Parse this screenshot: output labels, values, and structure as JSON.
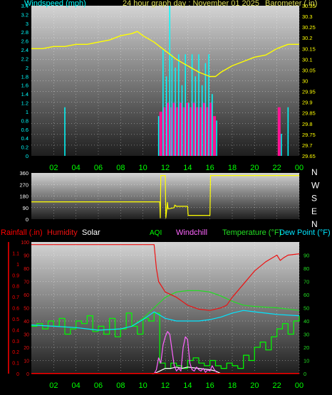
{
  "colors": {
    "background": "#000000",
    "panel_top": "#d4d4d4",
    "panel_bottom": "#1e1e1e",
    "grid": "#ffffff",
    "wind": "#00ffff",
    "gust": "#ff1493",
    "barometer": "#ffff00",
    "direction": "#ffff00",
    "rain": "#ff0000",
    "humidity": "#ee1111",
    "solar": "#ffffff",
    "aqi": "#00ff00",
    "windchill": "#ff66ff",
    "temperature": "#22dd22",
    "dewpoint": "#00e5ff",
    "time_labels": "#00ff00",
    "left_axis_wind": "#00ffff",
    "left_axis_rain": "#ff0000",
    "right_axis": "#22dd22",
    "wind_dir_letters": "#ffffff"
  },
  "chart_data": [
    {
      "type": "line",
      "title": "24 hour graph day : November 01 2025",
      "left_label": "Windspeed (mph)",
      "right_label": "Barometer (.in)",
      "xlim": [
        0,
        24
      ],
      "x_ticks": [
        "02",
        "04",
        "06",
        "08",
        "10",
        "12",
        "14",
        "16",
        "18",
        "20",
        "22",
        "00"
      ],
      "left_ylim": [
        0,
        3.4
      ],
      "left_ticks": [
        "0",
        "0.2",
        "0.4",
        "0.6",
        "0.8",
        "1",
        "1.2",
        "1.4",
        "1.6",
        "1.8",
        "2",
        "2.2",
        "2.4",
        "2.6",
        "2.8",
        "3",
        "3.2",
        "3.4"
      ],
      "right_ylim": [
        29.65,
        30.35
      ],
      "right_ticks": [
        "29.65",
        "29.7",
        "29.75",
        "29.8",
        "29.85",
        "29.9",
        "29.95",
        "30",
        "30.05",
        "30.1",
        "30.15",
        "30.2",
        "30.25",
        "30.3",
        "30.35"
      ],
      "series": [
        {
          "name": "Barometer (.in)",
          "x": [
            0,
            1,
            2,
            3,
            4,
            5,
            6,
            7,
            8,
            9,
            9.5,
            10,
            11,
            11.5,
            12,
            12.5,
            13,
            14,
            15,
            16,
            16.5,
            17,
            18,
            19,
            20,
            21,
            22,
            22.5,
            23,
            24
          ],
          "y": [
            30.15,
            30.15,
            30.16,
            30.16,
            30.17,
            30.17,
            30.18,
            30.19,
            30.21,
            30.22,
            30.23,
            30.21,
            30.18,
            30.16,
            30.14,
            30.12,
            30.1,
            30.07,
            30.04,
            30.02,
            30.02,
            30.04,
            30.07,
            30.09,
            30.11,
            30.12,
            30.15,
            30.16,
            30.17,
            30.17
          ]
        },
        {
          "name": "Windspeed (mph)",
          "spikes": [
            [
              3.0,
              1.1
            ],
            [
              11.4,
              0.9
            ],
            [
              11.8,
              2.4
            ],
            [
              12.1,
              1.8
            ],
            [
              12.4,
              3.4
            ],
            [
              12.6,
              2.3
            ],
            [
              12.9,
              2.0
            ],
            [
              13.2,
              2.3
            ],
            [
              13.5,
              1.6
            ],
            [
              13.8,
              2.3
            ],
            [
              14.1,
              1.2
            ],
            [
              14.4,
              2.3
            ],
            [
              14.7,
              1.8
            ],
            [
              15.0,
              2.3
            ],
            [
              15.3,
              1.6
            ],
            [
              15.6,
              2.1
            ],
            [
              15.9,
              2.3
            ],
            [
              16.2,
              1.4
            ],
            [
              16.6,
              0.8
            ],
            [
              22.4,
              0.5
            ],
            [
              23.0,
              1.1
            ]
          ]
        },
        {
          "name": "Gust",
          "spikes": [
            [
              11.6,
              1.0
            ],
            [
              11.9,
              1.1
            ],
            [
              12.2,
              1.2
            ],
            [
              12.5,
              1.1
            ],
            [
              12.8,
              1.2
            ],
            [
              13.1,
              1.1
            ],
            [
              13.4,
              1.2
            ],
            [
              13.7,
              1.1
            ],
            [
              14.0,
              1.2
            ],
            [
              14.3,
              1.1
            ],
            [
              14.6,
              1.2
            ],
            [
              14.9,
              1.1
            ],
            [
              15.2,
              1.1
            ],
            [
              15.5,
              1.2
            ],
            [
              15.8,
              1.1
            ],
            [
              16.1,
              1.2
            ],
            [
              16.4,
              0.9
            ],
            [
              22.2,
              1.1
            ]
          ]
        }
      ]
    },
    {
      "type": "line",
      "right_label_letters": [
        "N",
        "W",
        "S",
        "E",
        "N"
      ],
      "left_ticks": [
        "360",
        "270",
        "180",
        "90",
        "0"
      ],
      "ylim": [
        0,
        360
      ],
      "xlim": [
        0,
        24
      ],
      "series": [
        {
          "name": "Wind direction",
          "x": [
            0,
            11.5,
            11.55,
            11.6,
            12.0,
            12.05,
            12.2,
            12.25,
            12.8,
            12.85,
            13.0,
            13.2,
            14.0,
            14.05,
            16.0,
            16.05,
            24
          ],
          "y": [
            135,
            135,
            10,
            340,
            340,
            10,
            130,
            80,
            90,
            110,
            100,
            100,
            100,
            30,
            30,
            340,
            340
          ]
        }
      ]
    },
    {
      "type": "line",
      "legend": [
        "Rainfall (.in)",
        "Humidity",
        "Solar",
        "AQI",
        "Windchill",
        "Temperature (°F)",
        "Dew Point (°F)"
      ],
      "xlim": [
        0,
        24
      ],
      "x_ticks": [
        "02",
        "04",
        "06",
        "08",
        "10",
        "12",
        "14",
        "16",
        "18",
        "20",
        "22",
        "00"
      ],
      "rain_ylim": [
        0,
        1.2
      ],
      "rain_ticks": [
        "0",
        "0.1",
        "0.2",
        "0.3",
        "0.4",
        "0.5",
        "0.6",
        "0.7",
        "0.8",
        "0.9",
        "1",
        "1.1"
      ],
      "humidity_ticks": [
        "0",
        "10",
        "20",
        "30",
        "40",
        "50",
        "60",
        "70",
        "80",
        "90",
        "100"
      ],
      "temp_ylim": [
        0,
        100
      ],
      "temp_ticks": [
        "0",
        "10",
        "20",
        "30",
        "40",
        "50",
        "60",
        "70",
        "80",
        "90"
      ],
      "series": [
        {
          "name": "Humidity",
          "x": [
            0,
            1,
            2,
            3,
            4,
            5,
            6,
            7,
            8,
            9,
            10,
            11,
            11.2,
            11.4,
            12,
            13,
            14,
            15,
            16,
            17,
            17.5,
            18,
            19,
            20,
            21,
            22,
            22.3,
            22.6,
            23,
            24
          ],
          "y": [
            98,
            98,
            98,
            98,
            98,
            98,
            98,
            98,
            98,
            98,
            98,
            98,
            80,
            70,
            62,
            58,
            52,
            49,
            48,
            50,
            52,
            58,
            68,
            78,
            85,
            90,
            86,
            88,
            90,
            91
          ]
        },
        {
          "name": "Temperature (°F)",
          "x": [
            0,
            2,
            4,
            6,
            8,
            9,
            10,
            11,
            12,
            13,
            14,
            15,
            16,
            17,
            18,
            19,
            20,
            22,
            24
          ],
          "y": [
            37,
            36,
            35,
            33,
            34,
            36,
            42,
            50,
            58,
            62,
            63,
            63,
            62,
            59,
            55,
            52,
            51,
            50,
            48
          ]
        },
        {
          "name": "Dew Point (°F)",
          "x": [
            0,
            2,
            4,
            6,
            8,
            9,
            10,
            11,
            12,
            13,
            14,
            15,
            16,
            17,
            18,
            19,
            20,
            22,
            24
          ],
          "y": [
            37,
            36,
            35,
            33,
            34,
            36,
            41,
            47,
            42,
            40,
            40,
            40,
            41,
            43,
            46,
            48,
            47,
            45,
            44
          ]
        },
        {
          "name": "AQI",
          "x": [
            0,
            0.5,
            1,
            1.5,
            2,
            2.5,
            3,
            3.5,
            4,
            4.5,
            5,
            5.5,
            6,
            6.5,
            7,
            7.5,
            8,
            8.5,
            9,
            9.5,
            10,
            10.5,
            11,
            11.5,
            12,
            12.5,
            13,
            13.5,
            14,
            14.5,
            15,
            15.5,
            16,
            16.5,
            17,
            17.5,
            18,
            18.5,
            19,
            19.5,
            20,
            20.5,
            21,
            21.5,
            22,
            22.5,
            23,
            23.5,
            24
          ],
          "y": [
            36,
            38,
            34,
            40,
            36,
            42,
            30,
            34,
            40,
            38,
            44,
            32,
            36,
            30,
            42,
            28,
            34,
            46,
            36,
            30,
            42,
            40,
            46,
            8,
            4,
            8,
            6,
            4,
            10,
            12,
            8,
            6,
            10,
            6,
            4,
            8,
            6,
            4,
            14,
            10,
            20,
            24,
            18,
            28,
            34,
            38,
            30,
            40,
            44
          ]
        },
        {
          "name": "Windchill",
          "x": [
            11,
            11.2,
            11.4,
            11.6,
            11.8,
            12,
            12.2,
            12.4,
            12.6,
            12.8,
            13,
            13.2,
            13.4,
            13.6,
            13.8,
            14,
            14.2,
            14.4,
            14.6,
            14.8,
            15,
            15.2,
            15.4,
            15.6,
            15.8,
            16,
            16.2,
            16.4,
            16.6
          ],
          "y": [
            0,
            3,
            12,
            8,
            22,
            28,
            32,
            30,
            18,
            6,
            2,
            4,
            2,
            20,
            28,
            26,
            8,
            3,
            2,
            5,
            3,
            2,
            4,
            1,
            3,
            2,
            6,
            3,
            1
          ]
        },
        {
          "name": "Solar",
          "x": [
            10.8,
            11,
            11.5,
            12,
            12.5,
            13,
            13.5,
            14,
            15,
            16,
            16.5,
            17
          ],
          "y": [
            0,
            0,
            2,
            4,
            4,
            5,
            4,
            5,
            4,
            3,
            2,
            0
          ]
        },
        {
          "name": "Rainfall (.in)",
          "x": [
            0,
            24
          ],
          "y": [
            0.002,
            0.002
          ]
        }
      ]
    }
  ]
}
